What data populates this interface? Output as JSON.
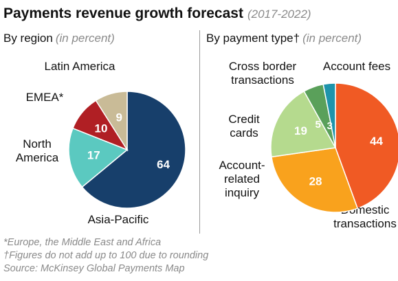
{
  "title": "Payments revenue growth forecast",
  "years": "(2017-2022)",
  "chart_data": [
    {
      "type": "pie",
      "title": "By region",
      "unit": "(in percent)",
      "slices": [
        {
          "label": "Asia-Pacific",
          "value": 64,
          "color": "#173f6b"
        },
        {
          "label": "North America",
          "value": 17,
          "color": "#5bc9c0"
        },
        {
          "label": "EMEA*",
          "value": 10,
          "color": "#b01f24"
        },
        {
          "label": "Latin America",
          "value": 9,
          "color": "#c9bb97"
        }
      ]
    },
    {
      "type": "pie",
      "title": "By payment type†",
      "unit": "(in percent)",
      "slices": [
        {
          "label": "Domestic transactions",
          "value": 44,
          "color": "#f05a24"
        },
        {
          "label": "Account-related inquiry",
          "value": 28,
          "color": "#f9a21d"
        },
        {
          "label": "Credit cards",
          "value": 19,
          "color": "#b5da8e"
        },
        {
          "label": "Cross border transactions",
          "value": 5,
          "color": "#5aa05a"
        },
        {
          "label": "Account fees",
          "value": 3,
          "color": "#1e94ab"
        }
      ]
    }
  ],
  "footnotes": [
    "*Europe, the Middle East and Africa",
    "†Figures do not add up to 100 due to rounding",
    "Source: McKinsey Global Payments Map"
  ]
}
